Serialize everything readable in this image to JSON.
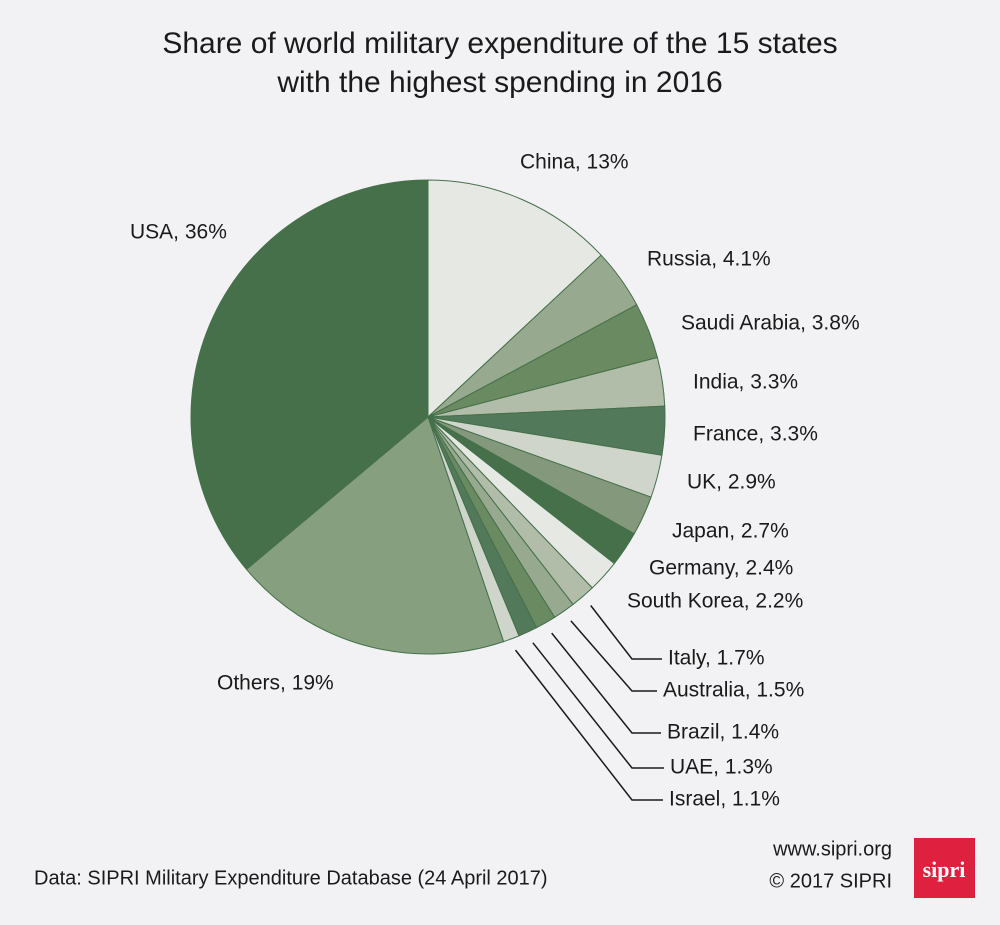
{
  "chart_data": {
    "type": "pie",
    "title": [
      "Share of world military expenditure of the 15 states",
      "with the highest spending in 2016"
    ],
    "values": [
      13,
      4.1,
      3.8,
      3.3,
      3.3,
      2.9,
      2.7,
      2.4,
      2.2,
      1.7,
      1.5,
      1.4,
      1.3,
      1.1,
      19,
      36
    ],
    "value_labels": [
      "China, 13%",
      "Russia, 4.1%",
      "Saudi Arabia, 3.8%",
      "India, 3.3%",
      "France, 3.3%",
      "UK, 2.9%",
      "Japan, 2.7%",
      "Germany, 2.4%",
      "South Korea, 2.2%",
      "Italy, 1.7%",
      "Australia, 1.5%",
      "Brazil, 1.4%",
      "UAE, 1.3%",
      "Israel, 1.1%",
      "Others, 19%",
      "USA, 36%"
    ],
    "colors": [
      "#e6e9e3",
      "#97a98e",
      "#6a8a62",
      "#b1bca9",
      "#52795a",
      "#cfd5ca",
      "#84997c",
      "#45704a",
      "#e6e9e3",
      "#b1bca9",
      "#97a98e",
      "#6a8a62",
      "#52795a",
      "#cfd5ca",
      "#86a07f",
      "#45704a"
    ],
    "source": "Data: SIPRI Military Expenditure Database (24 April 2017)",
    "website": "www.sipri.org",
    "copyright": "© 2017 SIPRI",
    "logo": "sipri"
  }
}
